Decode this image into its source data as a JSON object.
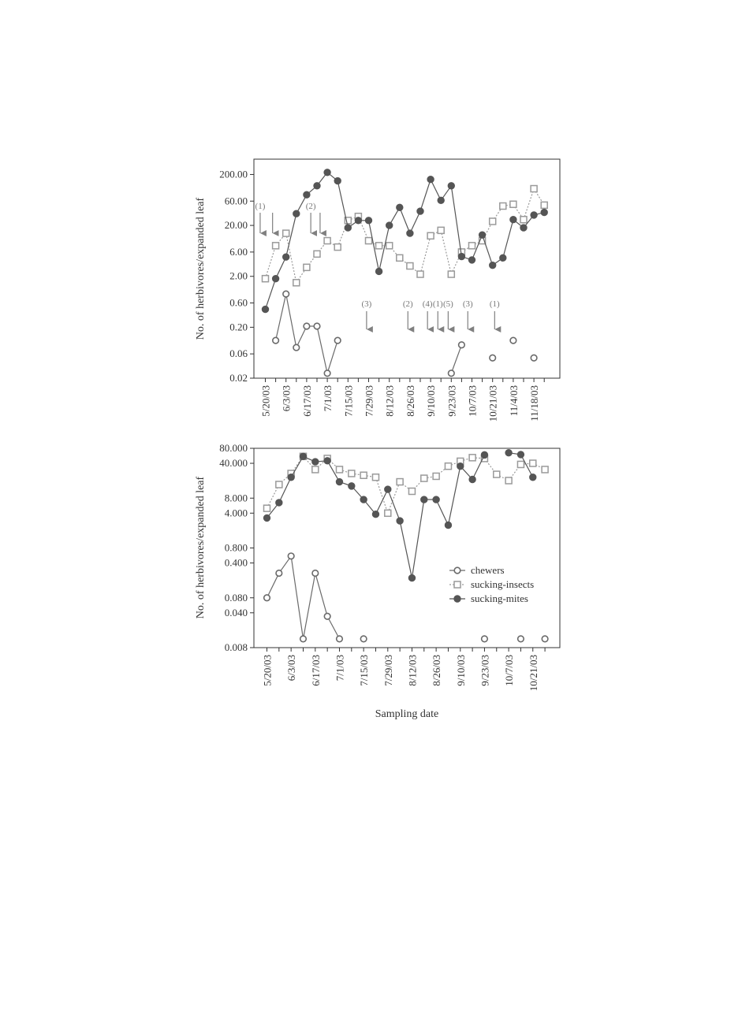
{
  "colors": {
    "chewers": "#6a6a6a",
    "sucking_insects": "#9a9a9a",
    "sucking_mites": "#555555",
    "annotation": "#808080",
    "axis": "#333333"
  },
  "chart_data": [
    {
      "type": "line",
      "scale": "log",
      "ylabel": "No. of herbivores/expanded leaf",
      "xlabel": "",
      "ylim": [
        0.02,
        400
      ],
      "yticks": [
        "200.00",
        "60.00",
        "20.00",
        "6.00",
        "2.00",
        "0.60",
        "0.20",
        "0.06",
        "0.02"
      ],
      "ytick_values": [
        200,
        60,
        20,
        6,
        2,
        0.6,
        0.2,
        0.06,
        0.02
      ],
      "n_positions": 28,
      "xtick_labels": [
        "5/20/03",
        "6/3/03",
        "6/17/03",
        "7/1/03",
        "7/15/03",
        "7/29/03",
        "8/12/03",
        "8/26/03",
        "9/10/03",
        "9/23/03",
        "10/7/03",
        "10/21/03",
        "11/4/03",
        "11/18/03"
      ],
      "series": [
        {
          "name": "chewers",
          "marker": "open-circle",
          "line": "solid",
          "values": [
            null,
            0.11,
            0.9,
            0.08,
            0.21,
            0.21,
            0.025,
            0.11,
            null,
            null,
            null,
            null,
            null,
            null,
            null,
            null,
            null,
            null,
            0.025,
            0.09,
            null,
            null,
            0.05,
            null,
            0.11,
            null,
            0.05,
            null
          ]
        },
        {
          "name": "sucking-insects",
          "marker": "open-square",
          "line": "dotted",
          "values": [
            1.8,
            8,
            14,
            1.5,
            3,
            5.5,
            10,
            7.5,
            25,
            30,
            10,
            8,
            8,
            4.6,
            3.2,
            2.2,
            12.5,
            16,
            2.2,
            6,
            8,
            10,
            24,
            48,
            52,
            26,
            105,
            50
          ]
        },
        {
          "name": "sucking-mites",
          "marker": "filled-circle",
          "line": "solid",
          "values": [
            0.45,
            1.8,
            4.8,
            34,
            80,
            120,
            220,
            150,
            18,
            25,
            25,
            2.5,
            20,
            45,
            14,
            38,
            160,
            62,
            120,
            4.9,
            4.2,
            13,
            3.3,
            4.6,
            26,
            18,
            32,
            36
          ]
        }
      ],
      "annotations": [
        {
          "label": "(1)",
          "position": -0.5
        },
        {
          "label": "",
          "position": 0.7
        },
        {
          "label": "(2)",
          "position": 4.4
        },
        {
          "label": "",
          "position": 5.3
        },
        {
          "label": "(3)",
          "position": 9.8
        },
        {
          "label": "(2)",
          "position": 13.8
        },
        {
          "label": "(4)",
          "position": 15.7
        },
        {
          "label": "(1)",
          "position": 16.7
        },
        {
          "label": "(5)",
          "position": 17.7
        },
        {
          "label": "(3)",
          "position": 19.6
        },
        {
          "label": "(1)",
          "position": 22.2
        }
      ]
    },
    {
      "type": "line",
      "scale": "log",
      "ylabel": "No. of herbivores/expanded leaf",
      "xlabel": "Sampling date",
      "ylim": [
        0.008,
        80
      ],
      "yticks": [
        "80.000",
        "40.000",
        "8.000",
        "4.000",
        "0.800",
        "0.400",
        "0.080",
        "0.040",
        "0.008"
      ],
      "ytick_values": [
        80,
        40,
        8,
        4,
        0.8,
        0.4,
        0.08,
        0.04,
        0.008
      ],
      "n_positions": 24,
      "xtick_labels": [
        "5/20/03",
        "6/3/03",
        "6/17/03",
        "7/1/03",
        "7/15/03",
        "7/29/03",
        "8/12/03",
        "8/26/03",
        "9/10/03",
        "9/23/03",
        "10/7/03",
        "10/21/03"
      ],
      "series": [
        {
          "name": "chewers",
          "marker": "open-circle",
          "line": "solid",
          "values": [
            0.08,
            0.25,
            0.55,
            0.012,
            0.25,
            0.034,
            0.012,
            null,
            0.012,
            null,
            null,
            null,
            null,
            null,
            null,
            null,
            null,
            null,
            0.012,
            null,
            null,
            0.012,
            null,
            0.012
          ]
        },
        {
          "name": "sucking-insects",
          "marker": "open-square",
          "line": "dotted",
          "values": [
            5,
            15,
            25,
            55,
            30,
            50,
            30,
            25,
            23,
            21,
            4,
            17,
            11,
            20,
            22,
            35,
            44,
            52,
            50,
            24,
            18,
            38,
            40,
            30
          ]
        },
        {
          "name": "sucking-mites",
          "marker": "filled-circle",
          "line": "solid",
          "values": [
            3.2,
            6.5,
            21,
            55,
            43,
            45,
            17,
            14,
            7.5,
            3.8,
            12,
            2.8,
            0.2,
            7.5,
            7.5,
            2.3,
            35,
            19,
            59,
            null,
            65,
            60,
            21,
            null
          ]
        }
      ],
      "legend": {
        "placement": "lower-right",
        "entries": [
          "chewers",
          "sucking-insects",
          "sucking-mites"
        ]
      }
    }
  ]
}
